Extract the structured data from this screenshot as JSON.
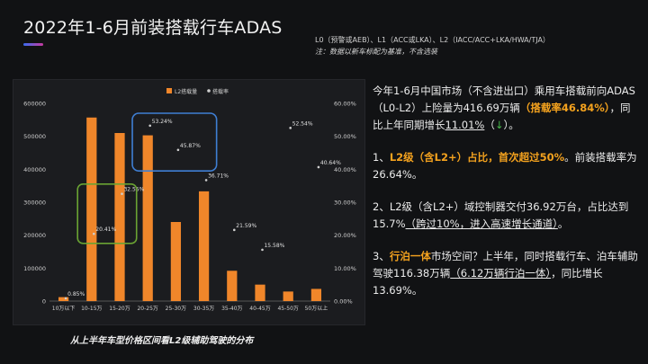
{
  "header": {
    "title": "2022年1-6月前装搭载行车ADAS",
    "levels_line": "L0（预警或AEB）、L1（ACC或LKA）、L2（IACC/ACC+LKA/HWA/TJA）",
    "note_line": "注：数据以新车标配为基准，不含选装"
  },
  "caption": "从上半年车型价格区间看L2级辅助驾驶的分布",
  "colors": {
    "bar": "#f0862a",
    "dot": "#cfcfcf",
    "highlight": "#f4a21e",
    "box_blue": "#3f7fd4",
    "box_green": "#6aa333"
  },
  "chart_data": {
    "type": "bar",
    "categories": [
      "10万以下",
      "10-15万",
      "15-20万",
      "20-25万",
      "25-30万",
      "30-35万",
      "35-40万",
      "40-45万",
      "45-50万",
      "50万以上"
    ],
    "series": [
      {
        "name": "L2搭载量",
        "axis": "left",
        "values": [
          12000,
          557000,
          510000,
          503000,
          240000,
          333000,
          92000,
          50000,
          29000,
          37000
        ]
      },
      {
        "name": "搭载率",
        "axis": "right",
        "values": [
          0.85,
          20.41,
          32.55,
          53.24,
          45.87,
          36.71,
          21.59,
          15.58,
          52.54,
          40.64
        ],
        "labels": [
          "0.85%",
          "20.41%",
          "32.55%",
          "53.24%",
          "45.87%",
          "36.71%",
          "21.59%",
          "15.58%",
          "52.54%",
          "40.64%"
        ]
      }
    ],
    "y_left": {
      "min": 0,
      "max": 600000,
      "ticks": [
        "0",
        "100000",
        "200000",
        "300000",
        "400000",
        "500000",
        "600000"
      ]
    },
    "y_right": {
      "min": 0,
      "max": 60,
      "ticks": [
        "0.00%",
        "10.00%",
        "20.00%",
        "30.00%",
        "40.00%",
        "50.00%",
        "60.00%"
      ]
    },
    "legend_placement": "top-center",
    "grid": false
  },
  "text": {
    "p1": {
      "a": "今年1-6月中国市场（不含进出口）乘用车搭载前向ADAS（L0-L2）上险量为416.69万辆",
      "b": "（搭载率46.84%）",
      "c": "，同比上年同期增长",
      "d": "11.01%",
      "e": "（",
      "f": "↓",
      "g": "）。"
    },
    "p2": {
      "a": "1、",
      "b": "L2级（含L2+）占比，首次超过50%",
      "c": "。前装搭载率为26.64%。"
    },
    "p3": {
      "a": "2、L2级（含L2+）域控制器交付36.92万台，占比达到15.7%",
      "b": "（跨过10%，进入高速增长通道）",
      "c": "。"
    },
    "p4": {
      "a": "3、",
      "b": "行泊一体",
      "c": "市场空间？上半年，同时搭载行车、泊车辅助驾驶116.38万辆",
      "d": "（6.12万辆行泊一体）",
      "e": "，同比增长13.69%。"
    }
  }
}
